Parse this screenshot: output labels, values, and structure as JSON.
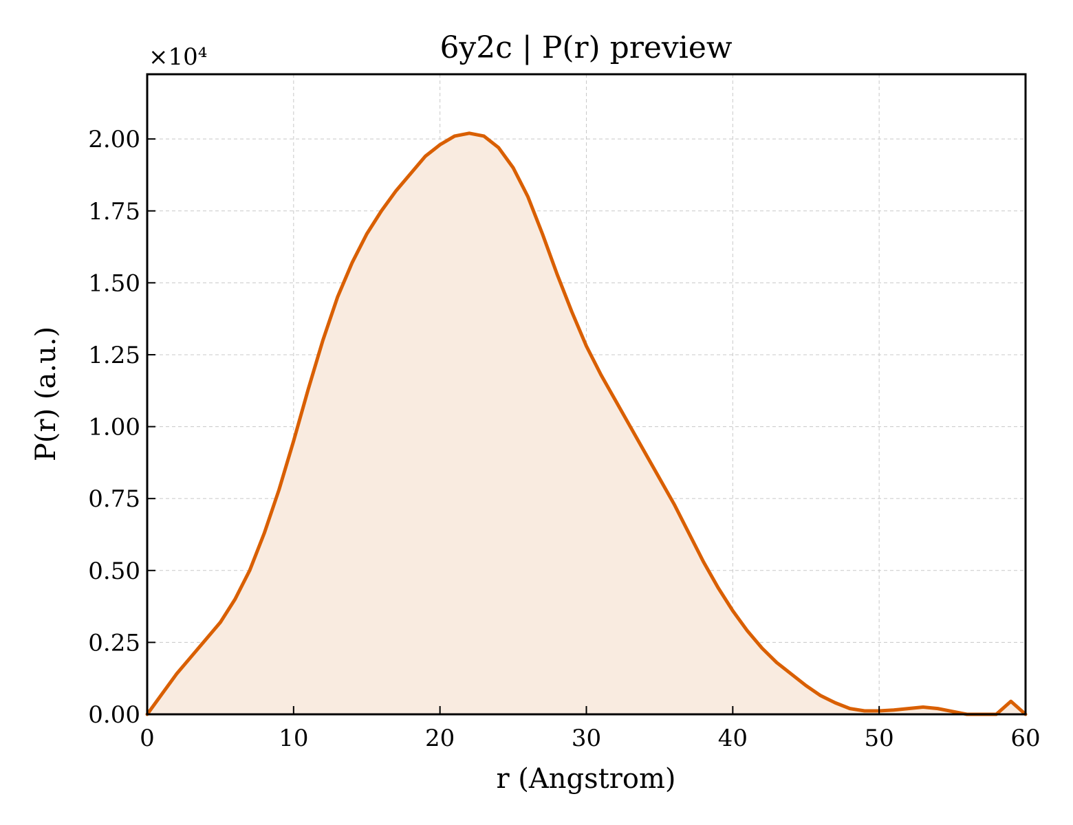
{
  "chart_data": {
    "type": "area",
    "title": "6y2c | P(r) preview",
    "xlabel": "r (Angstrom)",
    "ylabel": "P(r) (a.u.)",
    "y_multiplier_label": "×10⁴",
    "xlim": [
      0,
      60
    ],
    "ylim": [
      0,
      2.225
    ],
    "x_ticks": [
      0,
      10,
      20,
      30,
      40,
      50,
      60
    ],
    "x_tick_labels": [
      "0",
      "10",
      "20",
      "30",
      "40",
      "50",
      "60"
    ],
    "y_ticks": [
      0,
      0.25,
      0.5,
      0.75,
      1.0,
      1.25,
      1.5,
      1.75,
      2.0
    ],
    "y_tick_labels": [
      "0.00",
      "0.25",
      "0.50",
      "0.75",
      "1.00",
      "1.25",
      "1.50",
      "1.75",
      "2.00"
    ],
    "grid": true,
    "line_color": "#d95f02",
    "fill_color": "#f9ebe0",
    "series": [
      {
        "x": [
          0,
          1,
          2,
          3,
          4,
          5,
          6,
          7,
          8,
          9,
          10,
          11,
          12,
          13,
          14,
          15,
          16,
          17,
          18,
          19,
          20,
          21,
          22,
          23,
          24,
          25,
          26,
          27,
          28,
          29,
          30,
          31,
          32,
          33,
          34,
          35,
          36,
          37,
          38,
          39,
          40,
          41,
          42,
          43,
          44,
          45,
          46,
          47,
          48,
          49,
          50,
          51,
          52,
          53,
          54,
          55,
          56,
          57,
          58,
          59,
          60
        ],
        "y": [
          0,
          0.07,
          0.14,
          0.2,
          0.26,
          0.32,
          0.4,
          0.5,
          0.63,
          0.78,
          0.95,
          1.13,
          1.3,
          1.45,
          1.57,
          1.67,
          1.75,
          1.82,
          1.88,
          1.94,
          1.98,
          2.01,
          2.02,
          2.01,
          1.97,
          1.9,
          1.8,
          1.67,
          1.53,
          1.4,
          1.28,
          1.18,
          1.09,
          1.0,
          0.91,
          0.82,
          0.73,
          0.63,
          0.53,
          0.44,
          0.36,
          0.29,
          0.23,
          0.18,
          0.14,
          0.1,
          0.065,
          0.04,
          0.02,
          0.012,
          0.012,
          0.015,
          0.02,
          0.025,
          0.02,
          0.01,
          0,
          0,
          0,
          0.045,
          0
        ]
      }
    ]
  }
}
